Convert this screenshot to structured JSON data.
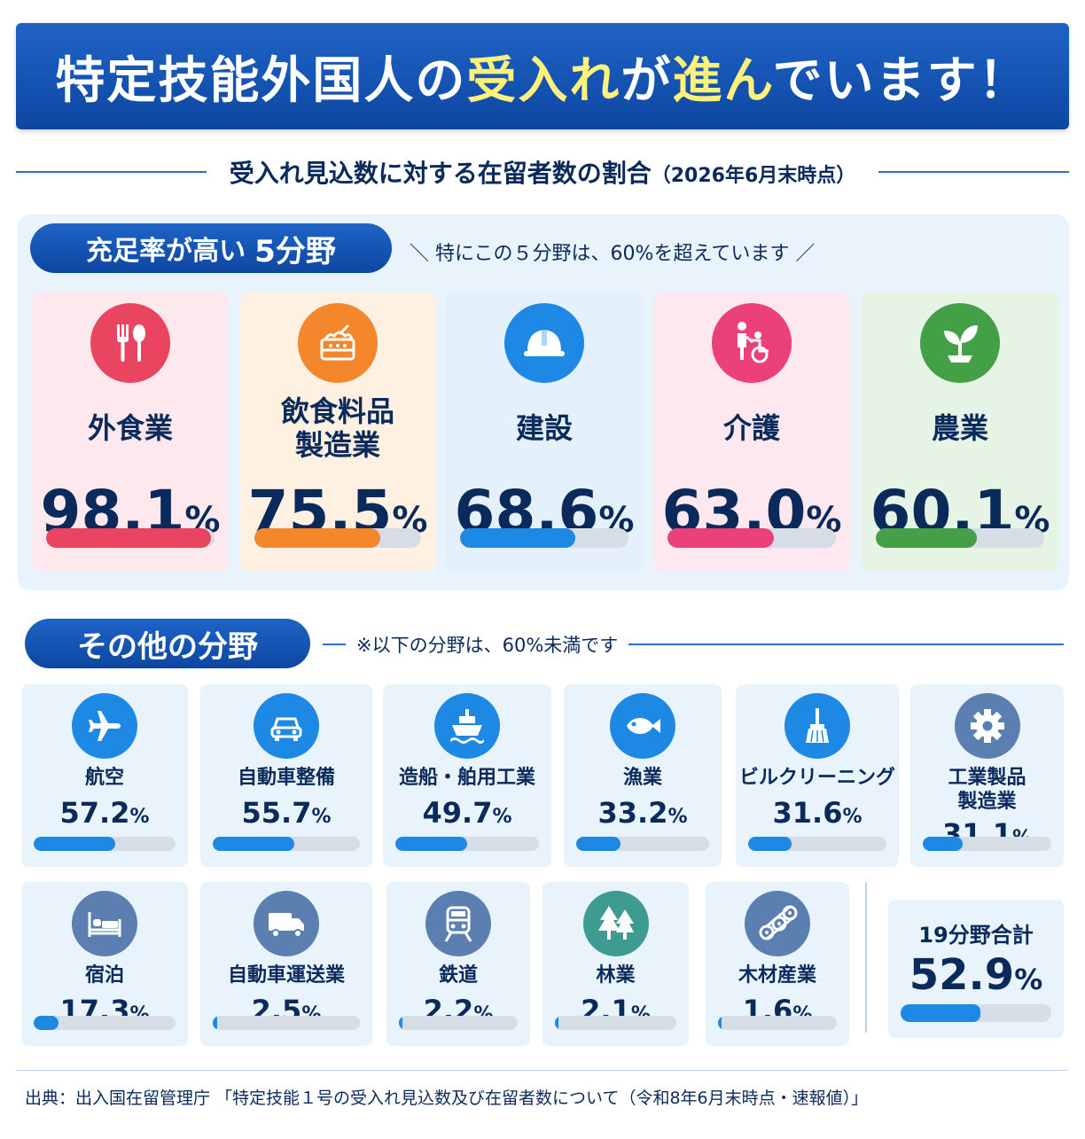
{
  "header": {
    "title_part1": "特定技能外国人の",
    "title_hl1": "受入れ",
    "title_part2": "が",
    "title_hl2": "進ん",
    "title_part3": "でいます！"
  },
  "subtitle": {
    "main": "受入れ見込数に対する在留者数の割合",
    "date": "（2026年6月末時点）"
  },
  "top_section": {
    "pill_label": "充足率が高い",
    "pill_count": "5分野",
    "note": "＼ 特にこの５分野は、60%を超えています ／"
  },
  "other_section": {
    "pill_label": "その他の分野",
    "note": "※以下の分野は、60%未満です"
  },
  "footer": {
    "source": "出典：出入国在留管理庁 「特定技能１号の受入れ見込数及び在留者数について（令和8年6月末時点・速報値）」"
  },
  "colors": {
    "accent": "#0d47a1",
    "highlight": "#fff17a",
    "bar_default": "#1e88e5",
    "bar_track": "#d6dde5"
  },
  "chart_data": {
    "type": "bar",
    "unit": "%",
    "ylim": [
      0,
      100
    ],
    "top_fields": [
      {
        "label": "外食業",
        "value": 98.1,
        "value_text": "98.1",
        "icon": "fork-spoon-icon",
        "color": "#e94560",
        "bg": "#fde8ee"
      },
      {
        "label": "飲食料品\n製造業",
        "value": 75.5,
        "value_text": "75.5",
        "icon": "food-factory-icon",
        "color": "#f4862b",
        "bg": "#fff1e2"
      },
      {
        "label": "建設",
        "value": 68.6,
        "value_text": "68.6",
        "icon": "hard-hat-icon",
        "color": "#1e88e5",
        "bg": "#e4f0fc"
      },
      {
        "label": "介護",
        "value": 63.0,
        "value_text": "63.0",
        "icon": "wheelchair-care-icon",
        "color": "#ec407a",
        "bg": "#fde8ef"
      },
      {
        "label": "農業",
        "value": 60.1,
        "value_text": "60.1",
        "icon": "sprout-icon",
        "color": "#43a047",
        "bg": "#e6f4e6"
      }
    ],
    "other_fields": [
      {
        "label": "航空",
        "value": 57.2,
        "value_text": "57.2",
        "icon": "airplane-icon"
      },
      {
        "label": "自動車整備",
        "value": 55.7,
        "value_text": "55.7",
        "icon": "car-icon"
      },
      {
        "label": "造船・舶用工業",
        "value": 49.7,
        "value_text": "49.7",
        "icon": "ship-icon"
      },
      {
        "label": "漁業",
        "value": 33.2,
        "value_text": "33.2",
        "icon": "fish-icon"
      },
      {
        "label": "ビルクリーニング",
        "value": 31.6,
        "value_text": "31.6",
        "icon": "broom-icon"
      },
      {
        "label": "工業製品\n製造業",
        "value": 31.1,
        "value_text": "31.1",
        "icon": "gear-icon"
      },
      {
        "label": "宿泊",
        "value": 17.3,
        "value_text": "17.3",
        "icon": "bed-icon"
      },
      {
        "label": "自動車運送業",
        "value": 2.5,
        "value_text": "2.5",
        "icon": "truck-icon"
      },
      {
        "label": "鉄道",
        "value": 2.2,
        "value_text": "2.2",
        "icon": "train-icon"
      },
      {
        "label": "林業",
        "value": 2.1,
        "value_text": "2.1",
        "icon": "trees-icon"
      },
      {
        "label": "木材産業",
        "value": 1.6,
        "value_text": "1.6",
        "icon": "logs-icon"
      }
    ],
    "total": {
      "label": "19分野合計",
      "value": 52.9,
      "value_text": "52.9"
    }
  }
}
